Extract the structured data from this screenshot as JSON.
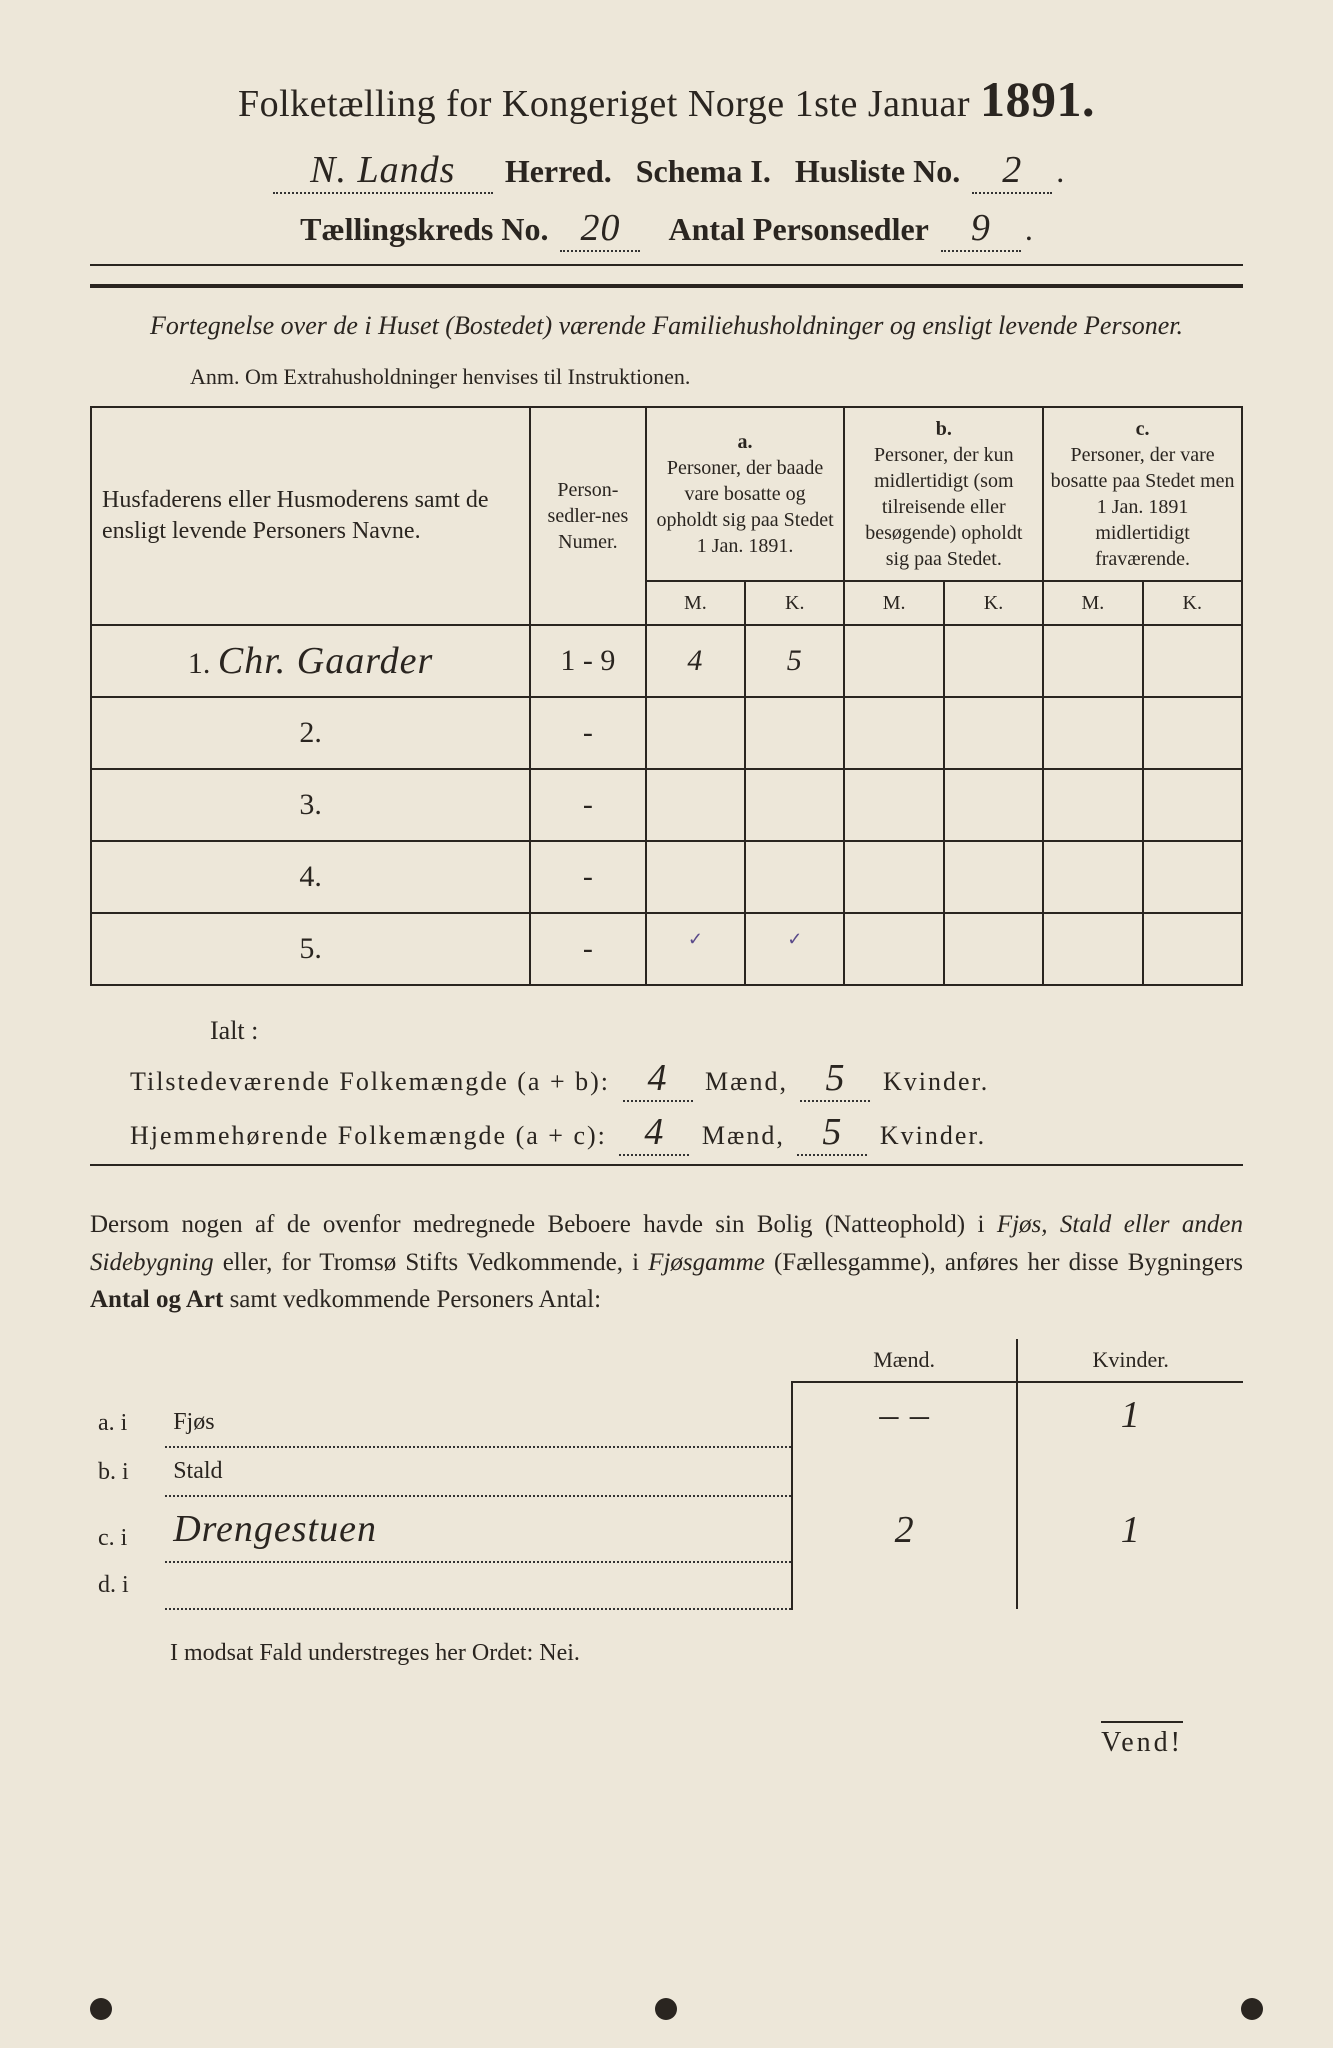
{
  "colors": {
    "paper": "#ede7d9",
    "ink": "#2a2520",
    "hand_ink": "#3a3530",
    "tick": "#5a4a8a"
  },
  "typography": {
    "title_fontsize": 38,
    "year_fontsize": 50,
    "subtitle_fontsize": 32,
    "hand_fontsize": 38,
    "intro_fontsize": 26,
    "anm_fontsize": 22,
    "table_header_fontsize": 20,
    "data_fontsize": 30,
    "body_fontsize": 25
  },
  "header": {
    "title_pre": "Folketælling for Kongeriget Norge 1ste Januar ",
    "year": "1891.",
    "herred_hand": "N. Lands",
    "herred_label": " Herred.",
    "schema_label": "Schema I.",
    "husliste_label": "Husliste No.",
    "husliste_no": "2",
    "kreds_label": "Tællingskreds No.",
    "kreds_no": "20",
    "sedler_label": "Antal Personsedler",
    "sedler_no": "9"
  },
  "intro": "Fortegnelse over de i Huset (Bostedet) værende Familiehusholdninger og ensligt levende Personer.",
  "anm": "Anm. Om Extrahusholdninger henvises til Instruktionen.",
  "table": {
    "col_names": "Husfaderens eller Husmoderens samt de ensligt levende Personers Navne.",
    "col_num": "Person-sedler-nes Numer.",
    "col_a_head": "a.",
    "col_a": "Personer, der baade vare bosatte og opholdt sig paa Stedet 1 Jan. 1891.",
    "col_b_head": "b.",
    "col_b": "Personer, der kun midlertidigt (som tilreisende eller besøgende) opholdt sig paa Stedet.",
    "col_c_head": "c.",
    "col_c": "Personer, der vare bosatte paa Stedet men 1 Jan. 1891 midlertidigt fraværende.",
    "m": "M.",
    "k": "K.",
    "rows": [
      {
        "n": "1.",
        "name": "Chr. Gaarder",
        "num": "1 - 9",
        "a_m": "4",
        "a_k": "5",
        "b_m": "",
        "b_k": "",
        "c_m": "",
        "c_k": ""
      },
      {
        "n": "2.",
        "name": "",
        "num": "-",
        "a_m": "",
        "a_k": "",
        "b_m": "",
        "b_k": "",
        "c_m": "",
        "c_k": ""
      },
      {
        "n": "3.",
        "name": "",
        "num": "-",
        "a_m": "",
        "a_k": "",
        "b_m": "",
        "b_k": "",
        "c_m": "",
        "c_k": ""
      },
      {
        "n": "4.",
        "name": "",
        "num": "-",
        "a_m": "",
        "a_k": "",
        "b_m": "",
        "b_k": "",
        "c_m": "",
        "c_k": ""
      },
      {
        "n": "5.",
        "name": "",
        "num": "-",
        "a_m": "",
        "a_k": "",
        "b_m": "",
        "b_k": "",
        "c_m": "",
        "c_k": ""
      }
    ]
  },
  "ialt": "Ialt :",
  "sum1": {
    "label": "Tilstedeværende Folkemængde (a + b):",
    "m": "4",
    "m_label": "Mænd,",
    "k": "5",
    "k_label": "Kvinder."
  },
  "sum2": {
    "label": "Hjemmehørende Folkemængde (a + c):",
    "m": "4",
    "m_label": "Mænd,",
    "k": "5",
    "k_label": "Kvinder."
  },
  "para": {
    "p1": "Dersom nogen af de ovenfor medregnede Beboere havde sin Bolig (Natteophold) i ",
    "p2_em": "Fjøs, Stald eller anden Sidebygning",
    "p3": " eller, for Tromsø Stifts Vedkommende, i ",
    "p4_em": "Fjøsgamme",
    "p5": " (Fællesgamme), anføres her disse Bygningers ",
    "p6_b": "Antal og Art",
    "p7": " samt vedkommende Personers Antal:"
  },
  "side": {
    "head_m": "Mænd.",
    "head_k": "Kvinder.",
    "rows": [
      {
        "lbl": "a.  i",
        "name": "Fjøs",
        "m": "–   –",
        "k": "1"
      },
      {
        "lbl": "b.  i",
        "name": "Stald",
        "m": "",
        "k": ""
      },
      {
        "lbl": "c.  i",
        "name": "Drengestuen",
        "m": "2",
        "k": "1"
      },
      {
        "lbl": "d.  i",
        "name": "",
        "m": "",
        "k": ""
      }
    ]
  },
  "nei": "I modsat Fald understreges her Ordet: Nei.",
  "vend": "Vend!"
}
